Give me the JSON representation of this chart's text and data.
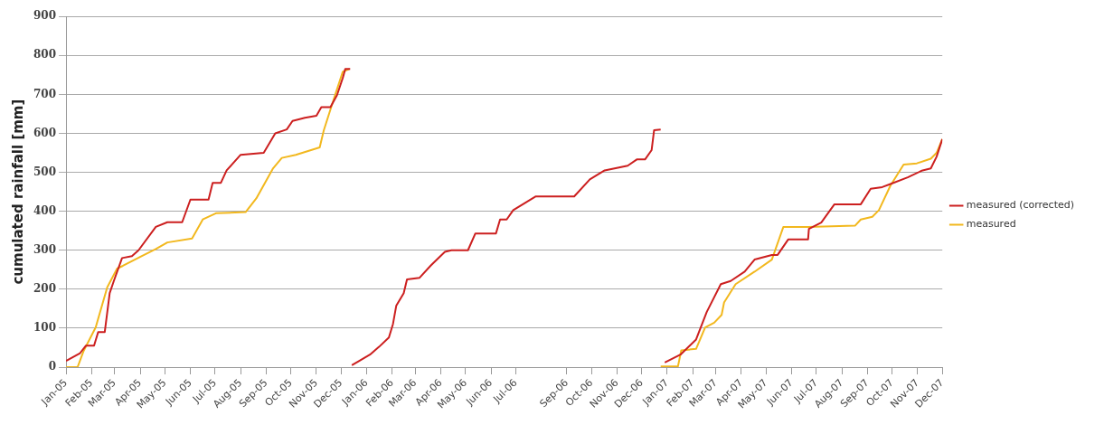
{
  "chart_data": {
    "type": "line",
    "ylabel": "cumulated rainfall [mm]",
    "series": [
      {
        "name": "measured (corrected)",
        "color": "#cc1f1f",
        "x": [
          "2005-01-01",
          "2005-01-18",
          "2005-01-25",
          "2005-02-04",
          "2005-02-09",
          "2005-02-17",
          "2005-02-23",
          "2005-02-28",
          "2005-03-10",
          "2005-03-22",
          "2005-03-30",
          "2005-04-20",
          "2005-05-04",
          "2005-05-22",
          "2005-06-01",
          "2005-06-23",
          "2005-06-28",
          "2005-07-08",
          "2005-07-15",
          "2005-08-01",
          "2005-08-29",
          "2005-09-12",
          "2005-09-26",
          "2005-10-03",
          "2005-10-18",
          "2005-11-01",
          "2005-11-07",
          "2005-11-18",
          "2005-11-26",
          "2005-12-03",
          "2005-12-06",
          "2005-12-12",
          "2005-12-13",
          "2005-12-14",
          "2005-12-23",
          "2006-01-05",
          "2006-01-16",
          "2006-01-28",
          "2006-02-02",
          "2006-02-06",
          "2006-02-15",
          "2006-02-19",
          "2006-03-06",
          "2006-03-20",
          "2006-04-06",
          "2006-04-14",
          "2006-05-04",
          "2006-05-13",
          "2006-06-07",
          "2006-06-12",
          "2006-06-20",
          "2006-06-28",
          "2006-07-25",
          "2006-09-10",
          "2006-09-29",
          "2006-10-17",
          "2006-11-14",
          "2006-11-25",
          "2006-12-05",
          "2006-12-13",
          "2006-12-16",
          "2006-12-24",
          "2006-12-26",
          "2006-12-29",
          "2007-01-17",
          "2007-02-05",
          "2007-02-18",
          "2007-03-07",
          "2007-03-19",
          "2007-04-05",
          "2007-04-17",
          "2007-05-08",
          "2007-05-15",
          "2007-05-28",
          "2007-06-21",
          "2007-06-22",
          "2007-07-07",
          "2007-07-23",
          "2007-08-24",
          "2007-09-05",
          "2007-09-19",
          "2007-09-29",
          "2007-10-20",
          "2007-11-07",
          "2007-11-17",
          "2007-11-24",
          "2007-12-01"
        ],
        "values": [
          16,
          36,
          55,
          55,
          90,
          90,
          190,
          221,
          280,
          285,
          300,
          360,
          372,
          372,
          430,
          430,
          473,
          473,
          505,
          545,
          550,
          600,
          610,
          632,
          640,
          645,
          667,
          667,
          698,
          742,
          765,
          765,
          null,
          5,
          16,
          32,
          52,
          76,
          111,
          158,
          190,
          225,
          229,
          261,
          296,
          300,
          300,
          343,
          343,
          379,
          379,
          403,
          438,
          438,
          482,
          505,
          517,
          533,
          533,
          557,
          608,
          610,
          null,
          12,
          32,
          71,
          142,
          213,
          221,
          245,
          276,
          288,
          288,
          328,
          328,
          355,
          371,
          418,
          418,
          458,
          462,
          470,
          487,
          505,
          510,
          540,
          585
        ]
      },
      {
        "name": "measured",
        "color": "#f2b81e",
        "x": [
          "2005-01-01",
          "2005-01-15",
          "2005-01-22",
          "2005-02-06",
          "2005-02-20",
          "2005-03-04",
          "2005-03-11",
          "2005-04-02",
          "2005-04-20",
          "2005-05-04",
          "2005-06-03",
          "2005-06-16",
          "2005-07-02",
          "2005-08-07",
          "2005-08-20",
          "2005-09-09",
          "2005-09-20",
          "2005-10-07",
          "2005-11-05",
          "2005-11-10",
          "2005-11-23",
          "2005-12-03",
          "2005-12-11",
          "2006-06-01",
          "2006-12-24",
          "2007-01-14",
          "2007-01-18",
          "2007-02-05",
          "2007-02-16",
          "2007-02-27",
          "2007-03-08",
          "2007-03-11",
          "2007-03-25",
          "2007-04-17",
          "2007-05-08",
          "2007-05-22",
          "2007-06-21",
          "2007-08-17",
          "2007-08-24",
          "2007-09-07",
          "2007-09-15",
          "2007-09-29",
          "2007-10-15",
          "2007-10-31",
          "2007-11-17",
          "2007-11-24",
          "2007-12-01"
        ],
        "values": [
          0,
          0,
          40,
          102,
          205,
          253,
          260,
          284,
          303,
          320,
          330,
          379,
          395,
          398,
          433,
          509,
          537,
          545,
          564,
          608,
          694,
          758,
          765,
          null,
          2,
          2,
          43,
          47,
          102,
          114,
          134,
          166,
          213,
          245,
          276,
          360,
          360,
          363,
          379,
          386,
          403,
          466,
          520,
          523,
          535,
          550,
          585
        ]
      }
    ],
    "xlim": [
      "2005-01",
      "2007-12"
    ],
    "xticks": [
      {
        "value": "2005-01",
        "label": "Jan-05"
      },
      {
        "value": "2005-02",
        "label": "Feb-05"
      },
      {
        "value": "2005-03",
        "label": "Mar-05"
      },
      {
        "value": "2005-04",
        "label": "Apr-05"
      },
      {
        "value": "2005-05",
        "label": "May-05"
      },
      {
        "value": "2005-06",
        "label": "Jun-05"
      },
      {
        "value": "2005-07",
        "label": "Jul-05"
      },
      {
        "value": "2005-08",
        "label": "Aug-05"
      },
      {
        "value": "2005-09",
        "label": "Sep-05"
      },
      {
        "value": "2005-10",
        "label": "Oct-05"
      },
      {
        "value": "2005-11",
        "label": "Nov-05"
      },
      {
        "value": "2005-12",
        "label": "Dec-05"
      },
      {
        "value": "2006-01",
        "label": "Jan-06"
      },
      {
        "value": "2006-02",
        "label": "Feb-06"
      },
      {
        "value": "2006-03",
        "label": "Mar-06"
      },
      {
        "value": "2006-04",
        "label": "Apr-06"
      },
      {
        "value": "2006-05",
        "label": "May-06"
      },
      {
        "value": "2006-06",
        "label": "Jun-06"
      },
      {
        "value": "2006-07",
        "label": "Jul-06"
      },
      {
        "value": "2006-09",
        "label": "Sep-06"
      },
      {
        "value": "2006-10",
        "label": "Oct-06"
      },
      {
        "value": "2006-11",
        "label": "Nov-06"
      },
      {
        "value": "2006-12",
        "label": "Dec-06"
      },
      {
        "value": "2007-01",
        "label": "Jan-07"
      },
      {
        "value": "2007-02",
        "label": "Feb-07"
      },
      {
        "value": "2007-03",
        "label": "Mar-07"
      },
      {
        "value": "2007-04",
        "label": "Apr-07"
      },
      {
        "value": "2007-05",
        "label": "May-07"
      },
      {
        "value": "2007-06",
        "label": "Jun-07"
      },
      {
        "value": "2007-07",
        "label": "Jul-07"
      },
      {
        "value": "2007-08",
        "label": "Aug-07"
      },
      {
        "value": "2007-09",
        "label": "Sep-07"
      },
      {
        "value": "2007-10",
        "label": "Oct-07"
      },
      {
        "value": "2007-11",
        "label": "Nov-07"
      },
      {
        "value": "2007-12",
        "label": "Dec-07"
      }
    ],
    "ylim": [
      0,
      900
    ],
    "yticks": [
      0,
      100,
      200,
      300,
      400,
      500,
      600,
      700,
      800,
      900
    ],
    "grid": "y",
    "legend": "right",
    "marker": "none",
    "line_style": "solid"
  }
}
